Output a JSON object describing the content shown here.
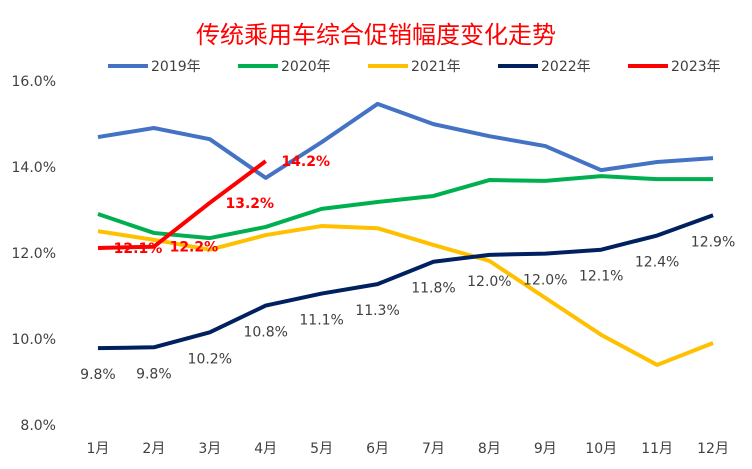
{
  "chart_data": {
    "type": "line",
    "title": "传统乘用车综合促销幅度变化走势",
    "categories": [
      "1月",
      "2月",
      "3月",
      "4月",
      "5月",
      "6月",
      "7月",
      "8月",
      "9月",
      "10月",
      "11月",
      "12月"
    ],
    "ylim": [
      8,
      16
    ],
    "yticks": [
      {
        "value": 8,
        "label": "8.0%"
      },
      {
        "value": 10,
        "label": "10.0%"
      },
      {
        "value": 12,
        "label": "12.0%"
      },
      {
        "value": 14,
        "label": "14.0%"
      },
      {
        "value": 16,
        "label": "16.0%"
      }
    ],
    "grid": false,
    "legend": "top",
    "series": [
      {
        "name": "2019年",
        "color": "#4472c4",
        "values": [
          14.72,
          14.93,
          14.67,
          13.77,
          14.6,
          15.49,
          15.02,
          14.74,
          14.51,
          13.95,
          14.14,
          14.23
        ]
      },
      {
        "name": "2020年",
        "color": "#00b050",
        "values": [
          12.93,
          12.49,
          12.37,
          12.63,
          13.05,
          13.21,
          13.35,
          13.72,
          13.7,
          13.81,
          13.74,
          13.74
        ]
      },
      {
        "name": "2021年",
        "color": "#ffc000",
        "values": [
          12.53,
          12.33,
          12.1,
          12.44,
          12.65,
          12.6,
          12.21,
          11.84,
          10.98,
          10.12,
          9.42,
          9.93
        ]
      },
      {
        "name": "2022年",
        "color": "#002060",
        "values": [
          9.81,
          9.83,
          10.18,
          10.8,
          11.08,
          11.3,
          11.82,
          11.98,
          12.01,
          12.1,
          12.43,
          12.9
        ],
        "value_labels": [
          "9.8%",
          "9.8%",
          "10.2%",
          "10.8%",
          "11.1%",
          "11.3%",
          "11.8%",
          "12.0%",
          "12.0%",
          "12.1%",
          "12.4%",
          "12.9%"
        ]
      },
      {
        "name": "2023年",
        "color": "#ff0000",
        "values": [
          12.14,
          12.17,
          13.19,
          14.16,
          null,
          null,
          null,
          null,
          null,
          null,
          null,
          null
        ],
        "value_labels": [
          "12.1%",
          "12.2%",
          "13.2%",
          "14.2%",
          null,
          null,
          null,
          null,
          null,
          null,
          null,
          null
        ]
      }
    ]
  }
}
